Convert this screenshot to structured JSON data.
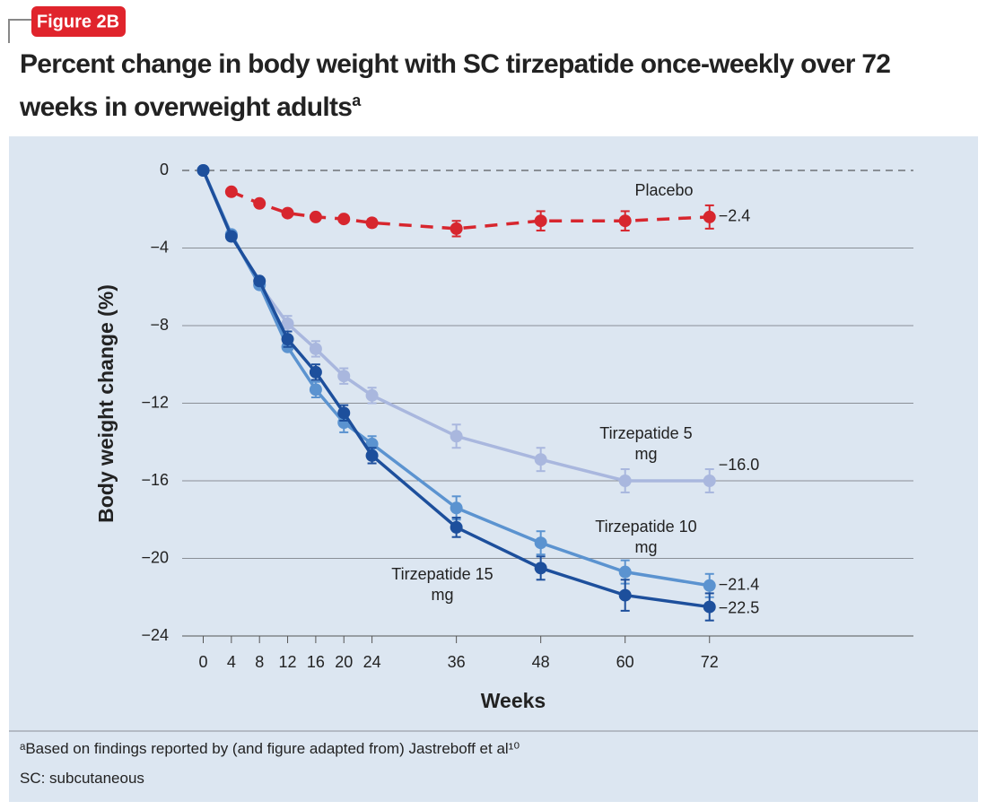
{
  "badge": "Figure 2B",
  "title": "Percent change in body weight with SC tirzepatide once-weekly over 72 weeks in overweight adults",
  "title_superscript": "a",
  "footnotes": [
    "ᵃBased on findings reported by (and figure adapted from) Jastreboff et al¹⁰",
    "SC: subcutaneous"
  ],
  "chart_data": {
    "type": "line",
    "x_label": "Weeks",
    "y_label": "Body weight change (%)",
    "x": [
      0,
      4,
      8,
      12,
      16,
      20,
      24,
      36,
      48,
      60,
      72
    ],
    "xlim": [
      -3,
      101
    ],
    "xticks": [
      0,
      4,
      8,
      12,
      16,
      20,
      24,
      36,
      48,
      60,
      72
    ],
    "ylim": [
      -24,
      0
    ],
    "yticks": [
      0,
      {
        "value": -4,
        "label": "−4"
      },
      {
        "value": -8,
        "label": "−8"
      },
      {
        "value": -12,
        "label": "−12"
      },
      {
        "value": -16,
        "label": "−16"
      },
      {
        "value": -20,
        "label": "−20"
      },
      {
        "value": -24,
        "label": "−24"
      }
    ],
    "grid": true,
    "series": [
      {
        "name": "Placebo",
        "color": "#d7262e",
        "dashed": true,
        "values": [
          null,
          -1.1,
          -1.7,
          -2.2,
          -2.4,
          -2.5,
          -2.7,
          -3.0,
          -2.6,
          -2.6,
          -2.4
        ],
        "errors": [
          null,
          null,
          null,
          null,
          null,
          null,
          0.2,
          0.4,
          0.5,
          0.5,
          0.6
        ],
        "value_labels": [
          null,
          null,
          null,
          null,
          null,
          null,
          null,
          null,
          null,
          null,
          "−2.4"
        ]
      },
      {
        "name": "Tirzepatide 5 mg",
        "color": "#a9b7de",
        "dashed": false,
        "values": [
          0,
          -3.3,
          -5.9,
          -7.9,
          -9.2,
          -10.6,
          -11.6,
          -13.7,
          -14.9,
          -16.0,
          -16.0
        ],
        "errors": [
          null,
          null,
          null,
          0.4,
          0.4,
          0.4,
          0.4,
          0.6,
          0.6,
          0.6,
          0.6
        ],
        "value_labels": [
          null,
          null,
          null,
          null,
          null,
          null,
          null,
          null,
          null,
          null,
          "−16.0"
        ]
      },
      {
        "name": "Tirzepatide 10 mg",
        "color": "#5b93d0",
        "dashed": false,
        "values": [
          0,
          -3.3,
          -5.9,
          -9.1,
          -11.3,
          -13.0,
          -14.1,
          -17.4,
          -19.2,
          -20.7,
          -21.4
        ],
        "errors": [
          null,
          null,
          null,
          null,
          0.4,
          0.5,
          0.4,
          0.6,
          0.6,
          0.6,
          0.6
        ],
        "value_labels": [
          null,
          null,
          null,
          null,
          null,
          null,
          null,
          null,
          null,
          null,
          "−21.4"
        ]
      },
      {
        "name": "Tirzepatide 15 mg",
        "color": "#1d4f9c",
        "dashed": false,
        "values": [
          0,
          -3.4,
          -5.7,
          -8.7,
          -10.4,
          -12.5,
          -14.7,
          -18.4,
          -20.5,
          -21.9,
          -22.5
        ],
        "errors": [
          null,
          null,
          null,
          0.4,
          0.4,
          0.4,
          0.4,
          0.5,
          0.6,
          0.8,
          0.7
        ],
        "value_labels": [
          null,
          null,
          null,
          null,
          null,
          null,
          null,
          null,
          null,
          null,
          "−22.5"
        ]
      }
    ]
  }
}
